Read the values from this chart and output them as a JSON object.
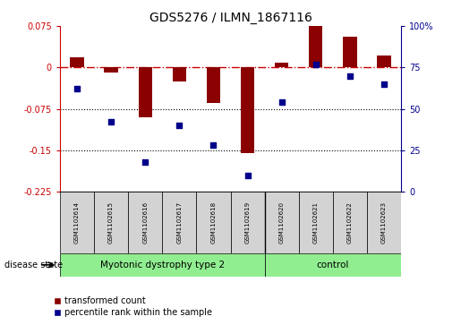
{
  "title": "GDS5276 / ILMN_1867116",
  "samples": [
    "GSM1102614",
    "GSM1102615",
    "GSM1102616",
    "GSM1102617",
    "GSM1102618",
    "GSM1102619",
    "GSM1102620",
    "GSM1102621",
    "GSM1102622",
    "GSM1102623"
  ],
  "transformed_count": [
    0.018,
    -0.01,
    -0.09,
    -0.025,
    -0.065,
    -0.155,
    0.008,
    0.08,
    0.055,
    0.022
  ],
  "percentile_rank": [
    62,
    42,
    18,
    40,
    28,
    10,
    54,
    77,
    70,
    65
  ],
  "bar_color": "#8B0000",
  "dot_color": "#00008B",
  "ylim_left": [
    -0.225,
    0.075
  ],
  "ylim_right": [
    0,
    100
  ],
  "yticks_left": [
    0.075,
    0.0,
    -0.075,
    -0.15,
    -0.225
  ],
  "ytick_labels_left": [
    "0.075",
    "0",
    "-0.075",
    "-0.15",
    "-0.225"
  ],
  "yticks_right": [
    100,
    75,
    50,
    25,
    0
  ],
  "ytick_labels_right": [
    "100%",
    "75",
    "50",
    "25",
    "0"
  ],
  "zero_line_color": "#CC0000",
  "dotted_lines": [
    -0.075,
    -0.15
  ],
  "group1_label": "Myotonic dystrophy type 2",
  "group2_label": "control",
  "group1_range": [
    0,
    5
  ],
  "group2_range": [
    6,
    9
  ],
  "group_color": "#90EE90",
  "sample_box_color": "#d3d3d3",
  "disease_state_label": "disease state",
  "legend_label_bar": "transformed count",
  "legend_label_dot": "percentile rank within the sample",
  "bar_width": 0.4
}
